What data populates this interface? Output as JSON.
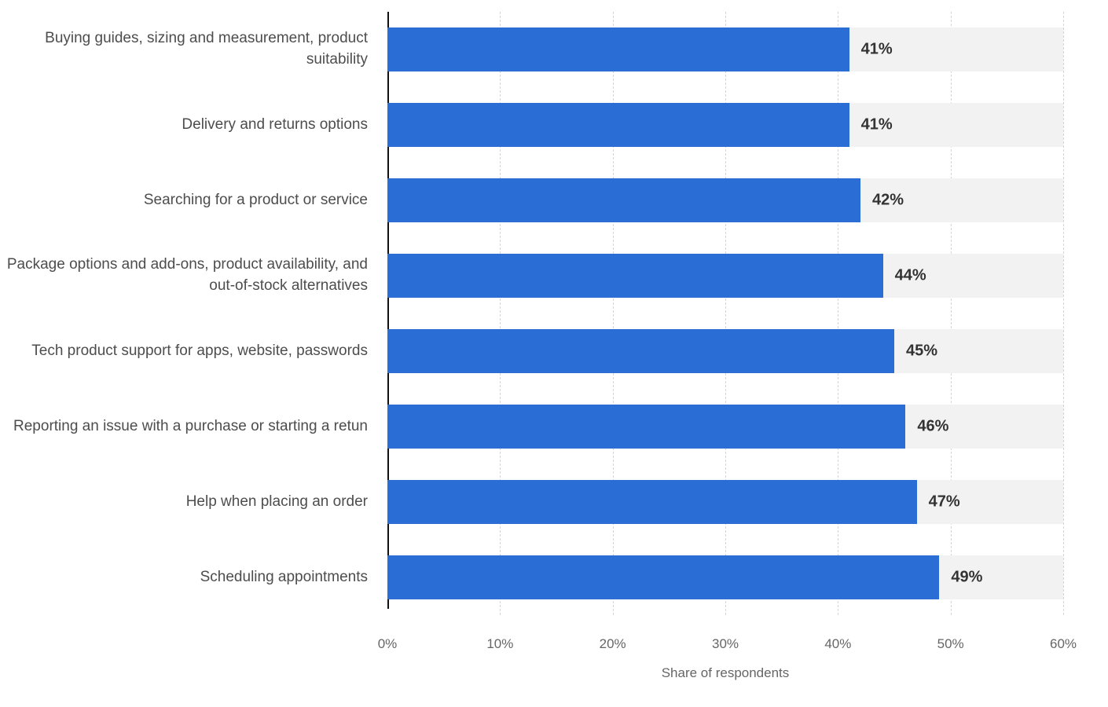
{
  "chart_data": {
    "type": "bar",
    "orientation": "horizontal",
    "title": "",
    "categories": [
      "Buying guides, sizing and measurement, product suitability",
      "Delivery and returns options",
      "Searching for a product or service",
      "Package options and add-ons, product availability, and out-of-stock alternatives",
      "Tech product support for apps, website, passwords",
      "Reporting an issue with a purchase or starting a retun",
      "Help when placing an order",
      "Scheduling appointments"
    ],
    "values": [
      41,
      41,
      42,
      44,
      45,
      46,
      47,
      49
    ],
    "value_labels": [
      "41%",
      "41%",
      "42%",
      "44%",
      "45%",
      "46%",
      "47%",
      "49%"
    ],
    "xlabel": "Share of respondents",
    "ylabel": "",
    "xlim": [
      0,
      60
    ],
    "xticks": [
      "0%",
      "10%",
      "20%",
      "30%",
      "40%",
      "50%",
      "60%"
    ],
    "grid": "dashed-vertical",
    "legend": "none",
    "bar_color": "#2a6dd5",
    "row_stripe_color": "#f2f2f2",
    "axis_line_color": "#111111",
    "label_color": "#4d4d4d",
    "value_label_color": "#333333",
    "tick_color": "#666666"
  }
}
